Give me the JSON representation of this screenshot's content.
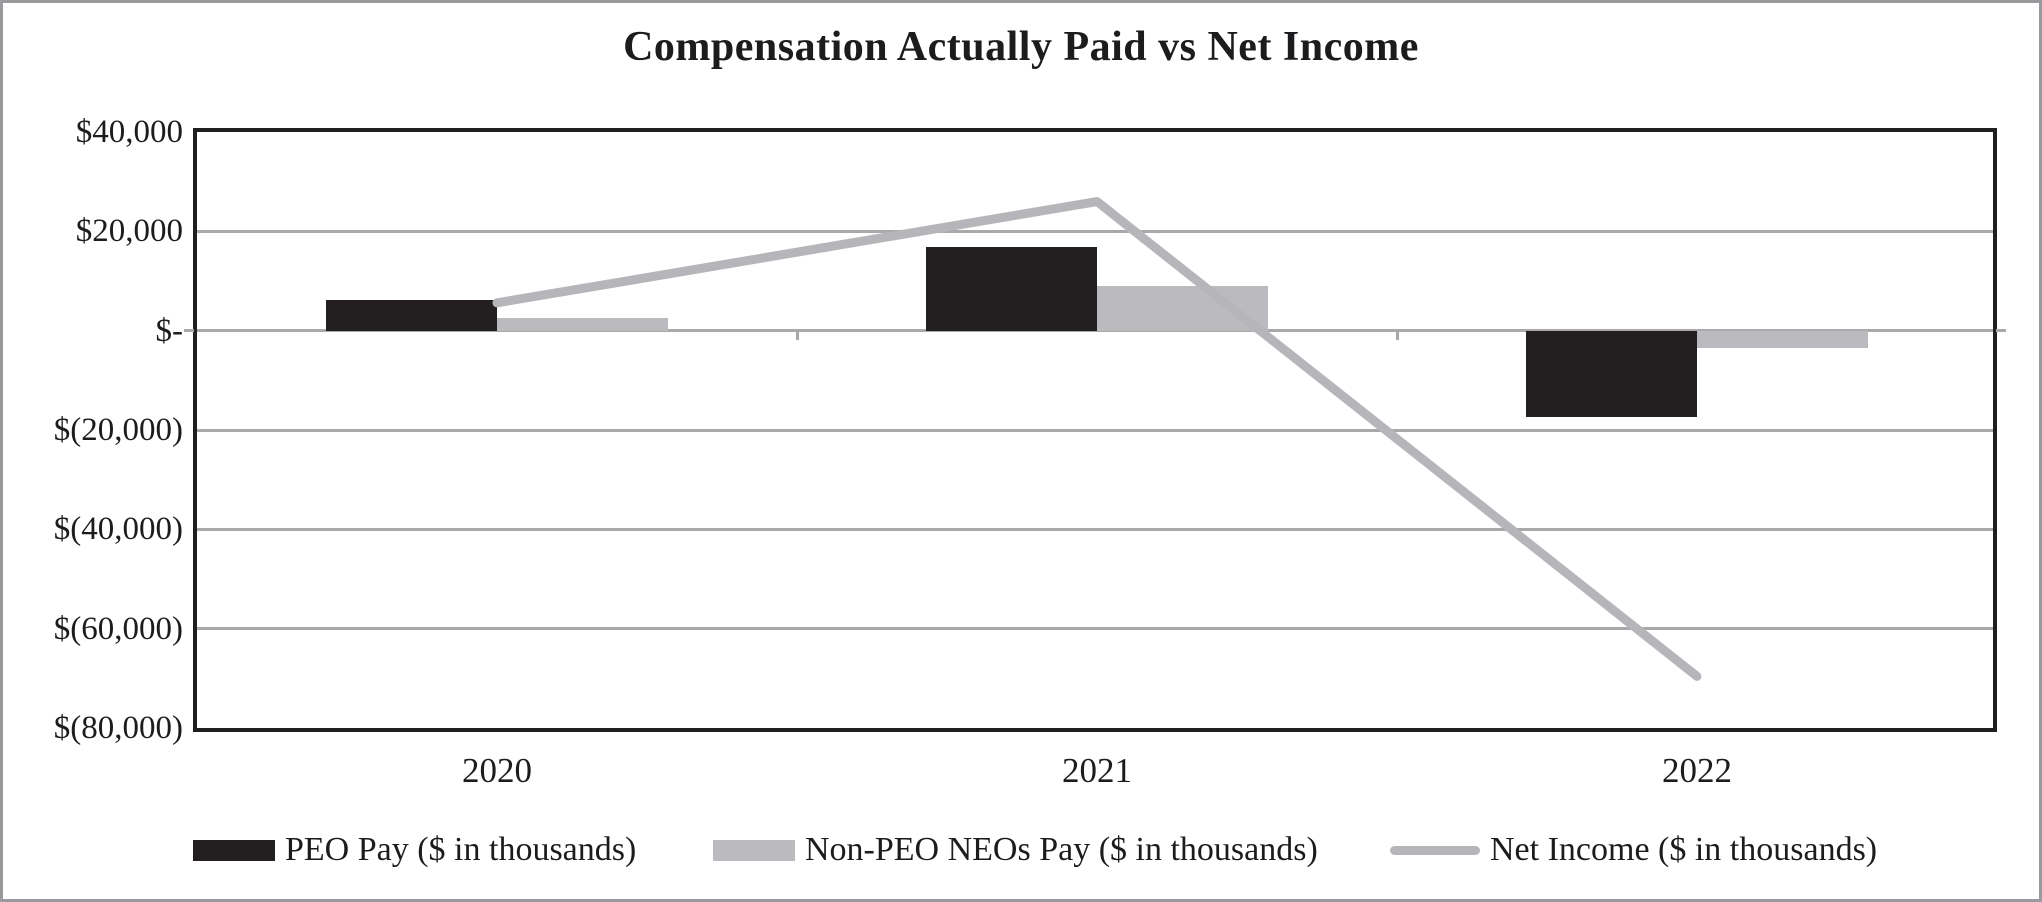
{
  "chart_data": {
    "type": "bar",
    "title": "Compensation Actually Paid vs Net Income",
    "categories": [
      "2020",
      "2021",
      "2022"
    ],
    "series": [
      {
        "name": "PEO Pay ($ in thousands)",
        "type": "bar",
        "color": "#231f20",
        "values": [
          6200,
          16800,
          -17400
        ]
      },
      {
        "name": "Non-PEO NEOs Pay ($ in thousands)",
        "type": "bar",
        "color": "#bbbbbf",
        "values": [
          2600,
          9000,
          -3400
        ]
      },
      {
        "name": "Net Income ($ in thousands)",
        "type": "line",
        "color": "#b6b6ba",
        "values": [
          5600,
          26000,
          -69600
        ]
      }
    ],
    "xlabel": "",
    "ylabel": "",
    "y_axis": {
      "min": -80000,
      "max": 40000,
      "grid": true,
      "ticks": [
        {
          "value": 40000,
          "label": "$40,000"
        },
        {
          "value": 20000,
          "label": "$20,000"
        },
        {
          "value": 0,
          "label": "$-"
        },
        {
          "value": -20000,
          "label": "$(20,000)"
        },
        {
          "value": -40000,
          "label": "$(40,000)"
        },
        {
          "value": -60000,
          "label": "$(60,000)"
        },
        {
          "value": -80000,
          "label": "$(80,000)"
        }
      ]
    },
    "legend_position": "bottom",
    "colors": {
      "gridline": "#a9a9a9",
      "plot_border": "#1f1f1f",
      "frame_border": "#9a9a9e",
      "text": "#1c1c1e",
      "background": "#ffffff"
    }
  }
}
